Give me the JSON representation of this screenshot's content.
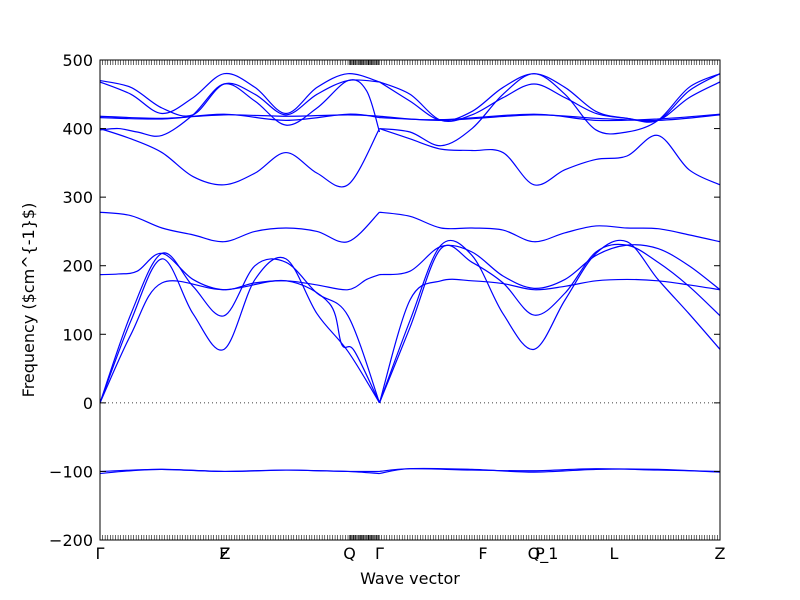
{
  "chart_data": {
    "type": "line",
    "xlabel": "Wave vector",
    "ylabel": "Frequency ($cm^{-1}$)",
    "ylim": [
      -200,
      500
    ],
    "xlim": [
      0,
      1
    ],
    "yticks": [
      -200,
      -100,
      0,
      100,
      200,
      300,
      400,
      500
    ],
    "high_symmetry_points": [
      {
        "label": "Γ",
        "x": 0.0
      },
      {
        "label": "F",
        "x": 0.1998
      },
      {
        "label": "Z",
        "x": 0.2015
      },
      {
        "label": "Q",
        "x": 0.4024
      },
      {
        "label": "Γ",
        "x": 0.4508
      },
      {
        "label": "F",
        "x": 0.6177
      },
      {
        "label": "P",
        "x": 0.7097
      },
      {
        "label": "Q_1",
        "x": 0.7145
      },
      {
        "label": "L",
        "x": 0.829
      },
      {
        "label": "Z",
        "x": 1.0
      }
    ],
    "zero_line": {
      "value": 0,
      "style": "dotted"
    },
    "line_color": "#0000ff",
    "grid": false,
    "series": [
      {
        "x": [
          0,
          0.05,
          0.1,
          0.2,
          0.3,
          0.35,
          0.4,
          0.4508
        ],
        "values": [
          -103,
          -99,
          -97,
          -100,
          -98,
          -99,
          -100,
          -103
        ]
      },
      {
        "x": [
          0,
          0.1,
          0.2,
          0.3,
          0.4,
          0.4508
        ],
        "values": [
          -100,
          -97,
          -100,
          -98,
          -100,
          -100
        ]
      },
      {
        "x": [
          0.4508,
          0.5,
          0.6,
          0.7,
          0.8,
          0.9,
          1.0
        ],
        "values": [
          -103,
          -96,
          -97,
          -101,
          -97,
          -97,
          -101
        ]
      },
      {
        "x": [
          0.4508,
          0.5,
          0.6,
          0.7,
          0.8,
          0.9,
          1.0
        ],
        "values": [
          -100,
          -96,
          -98,
          -99,
          -96,
          -98,
          -100
        ]
      },
      {
        "x": [
          0,
          0.05,
          0.1,
          0.2,
          0.3,
          0.37,
          0.39,
          0.41,
          0.4508
        ],
        "values": [
          0,
          100,
          175,
          165,
          178,
          145,
          85,
          76,
          0
        ]
      },
      {
        "x": [
          0,
          0.05,
          0.1,
          0.15,
          0.2,
          0.25,
          0.3,
          0.35,
          0.4,
          0.4508
        ],
        "values": [
          0,
          120,
          210,
          130,
          78,
          180,
          210,
          130,
          75,
          0
        ]
      },
      {
        "x": [
          0,
          0.05,
          0.1,
          0.15,
          0.2,
          0.25,
          0.3,
          0.35,
          0.4,
          0.4508
        ],
        "values": [
          0,
          130,
          218,
          170,
          127,
          200,
          205,
          160,
          127,
          0
        ]
      },
      {
        "x": [
          0,
          0.03,
          0.06,
          0.1,
          0.15,
          0.2,
          0.25,
          0.3,
          0.35,
          0.4,
          0.43,
          0.4508
        ],
        "values": [
          187,
          188,
          192,
          218,
          180,
          165,
          175,
          178,
          172,
          165,
          180,
          187
        ]
      },
      {
        "x": [
          0.4508,
          0.5,
          0.55,
          0.6,
          0.65,
          0.7,
          0.75,
          0.8,
          0.85,
          0.9,
          0.95,
          1.0
        ],
        "values": [
          0,
          120,
          230,
          215,
          130,
          78,
          150,
          218,
          235,
          180,
          130,
          78
        ]
      },
      {
        "x": [
          0.4508,
          0.5,
          0.55,
          0.6,
          0.65,
          0.7,
          0.75,
          0.8,
          0.85,
          0.9,
          0.95,
          1.0
        ],
        "values": [
          0,
          110,
          225,
          205,
          175,
          128,
          160,
          220,
          230,
          205,
          170,
          127
        ]
      },
      {
        "x": [
          0.4508,
          0.5,
          0.55,
          0.6,
          0.65,
          0.7,
          0.75,
          0.8,
          0.85,
          0.9,
          0.95,
          1.0
        ],
        "values": [
          0,
          150,
          178,
          178,
          174,
          165,
          170,
          178,
          180,
          178,
          172,
          165
        ]
      },
      {
        "x": [
          0.4508,
          0.5,
          0.55,
          0.6,
          0.65,
          0.7,
          0.75,
          0.8,
          0.85,
          0.9,
          0.95,
          1.0
        ],
        "values": [
          187,
          192,
          228,
          220,
          185,
          167,
          180,
          215,
          230,
          225,
          200,
          165
        ]
      },
      {
        "x": [
          0,
          0.05,
          0.1,
          0.15,
          0.2,
          0.25,
          0.3,
          0.35,
          0.4,
          0.4508
        ],
        "values": [
          278,
          273,
          255,
          245,
          235,
          250,
          255,
          250,
          235,
          278
        ]
      },
      {
        "x": [
          0.4508,
          0.5,
          0.55,
          0.6,
          0.65,
          0.7,
          0.75,
          0.8,
          0.85,
          0.9,
          0.95,
          1.0
        ],
        "values": [
          278,
          272,
          255,
          255,
          252,
          235,
          248,
          258,
          255,
          254,
          245,
          235
        ]
      },
      {
        "x": [
          0,
          0.05,
          0.1,
          0.15,
          0.2,
          0.25,
          0.3,
          0.35,
          0.4,
          0.4508
        ],
        "values": [
          400,
          385,
          365,
          330,
          318,
          335,
          365,
          335,
          318,
          400
        ]
      },
      {
        "x": [
          0,
          0.03,
          0.06,
          0.1,
          0.15,
          0.2,
          0.25,
          0.3,
          0.35,
          0.4,
          0.43,
          0.4508
        ],
        "values": [
          398,
          400,
          395,
          390,
          420,
          465,
          440,
          405,
          430,
          470,
          455,
          395
        ]
      },
      {
        "x": [
          0.4508,
          0.5,
          0.55,
          0.6,
          0.65,
          0.7,
          0.75,
          0.8,
          0.85,
          0.9,
          0.95,
          1.0
        ],
        "values": [
          400,
          385,
          370,
          368,
          365,
          318,
          340,
          355,
          360,
          390,
          340,
          318
        ]
      },
      {
        "x": [
          0.4508,
          0.5,
          0.55,
          0.6,
          0.65,
          0.7,
          0.75,
          0.8,
          0.85,
          0.9,
          0.95,
          1.0
        ],
        "values": [
          400,
          395,
          375,
          400,
          450,
          480,
          450,
          398,
          395,
          412,
          460,
          480
        ]
      },
      {
        "x": [
          0,
          0.05,
          0.1,
          0.15,
          0.2,
          0.25,
          0.3,
          0.35,
          0.4,
          0.4508
        ],
        "values": [
          470,
          460,
          430,
          420,
          465,
          450,
          420,
          450,
          470,
          468
        ]
      },
      {
        "x": [
          0,
          0.05,
          0.1,
          0.15,
          0.2,
          0.25,
          0.3,
          0.35,
          0.4,
          0.4508
        ],
        "values": [
          468,
          450,
          422,
          445,
          480,
          460,
          422,
          460,
          480,
          468
        ]
      },
      {
        "x": [
          0.4508,
          0.5,
          0.55,
          0.6,
          0.65,
          0.7,
          0.75,
          0.8,
          0.85,
          0.9,
          0.95,
          1.0
        ],
        "values": [
          468,
          450,
          412,
          420,
          445,
          465,
          445,
          422,
          415,
          412,
          445,
          468
        ]
      },
      {
        "x": [
          0.4508,
          0.5,
          0.55,
          0.6,
          0.65,
          0.7,
          0.75,
          0.8,
          0.85,
          0.9,
          0.95,
          1.0
        ],
        "values": [
          468,
          440,
          412,
          425,
          460,
          480,
          460,
          425,
          415,
          412,
          455,
          480
        ]
      },
      {
        "x": [
          0,
          0.1,
          0.2,
          0.3,
          0.4,
          0.4508
        ],
        "values": [
          418,
          415,
          420,
          418,
          420,
          418
        ]
      },
      {
        "x": [
          0,
          0.1,
          0.2,
          0.3,
          0.4,
          0.4508
        ],
        "values": [
          416,
          414,
          421,
          412,
          421,
          416
        ]
      },
      {
        "x": [
          0.4508,
          0.55,
          0.7,
          0.8,
          0.9,
          1.0
        ],
        "values": [
          418,
          412,
          420,
          415,
          412,
          420
        ]
      },
      {
        "x": [
          0.4508,
          0.55,
          0.7,
          0.8,
          0.9,
          1.0
        ],
        "values": [
          416,
          413,
          421,
          412,
          414,
          421
        ]
      }
    ]
  }
}
